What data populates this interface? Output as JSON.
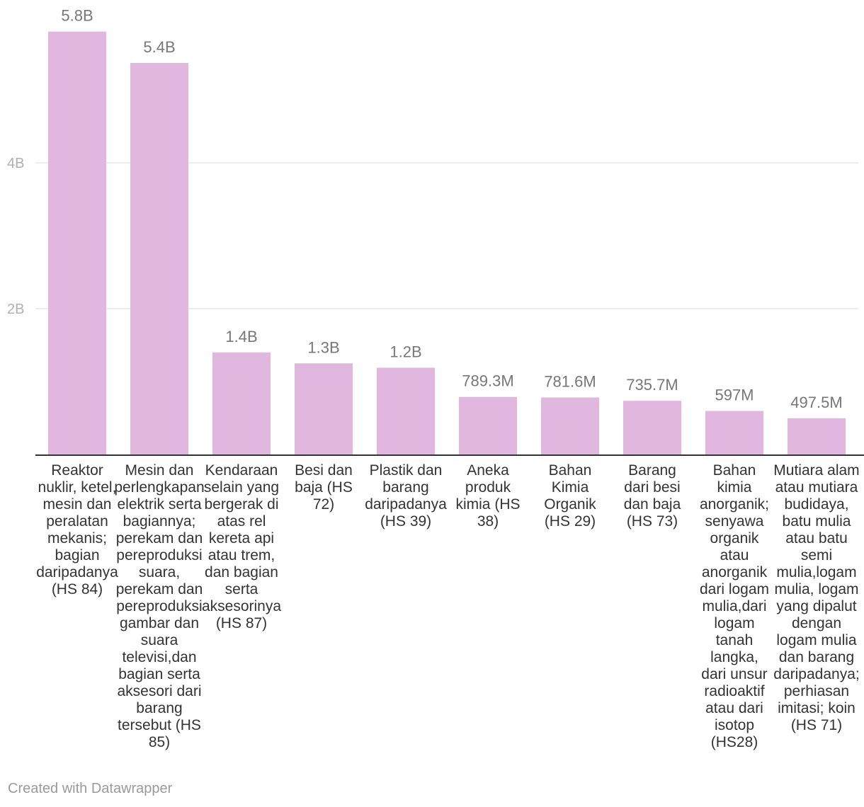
{
  "chart_data": {
    "type": "bar",
    "categories": [
      "Reaktor nuklir, ketel, mesin dan peralatan mekanis; bagian daripadanya (HS 84)",
      "Mesin dan perlengkapan elektrik serta bagiannya; perekam dan pereproduksi suara, perekam dan pereproduksi gambar dan suara televisi,dan bagian serta aksesori dari barang tersebut (HS 85)",
      "Kendaraan selain yang bergerak di atas rel kereta api atau trem, dan bagian serta aksesorinya (HS 87)",
      "Besi dan baja (HS 72)",
      "Plastik dan barang daripadanya (HS 39)",
      "Aneka produk kimia (HS 38)",
      "Bahan Kimia Organik (HS 29)",
      "Barang dari besi dan baja (HS 73)",
      "Bahan kimia anorganik; senyawa organik atau anorganik dari logam mulia,dari logam tanah langka, dari unsur radioaktif atau dari isotop (HS28)",
      "Mutiara alam atau mutiara budidaya, batu mulia atau batu semi mulia,logam mulia, logam yang dipalut dengan logam mulia dan barang daripadanya; perhiasan imitasi; koin (HS 71)"
    ],
    "category_lines": [
      [
        "Reaktor",
        "nuklir, ketel,",
        "mesin dan",
        "peralatan",
        "mekanis;",
        "bagian",
        "daripadanya",
        "(HS 84)"
      ],
      [
        "Mesin dan",
        "perlengkapan",
        "elektrik serta",
        "bagiannya;",
        "perekam dan",
        "pereproduksi",
        "suara,",
        "perekam dan",
        "pereproduksi",
        "gambar dan",
        "suara",
        "televisi,dan",
        "bagian serta",
        "aksesori dari",
        "barang",
        "tersebut (HS",
        "85)"
      ],
      [
        "Kendaraan",
        "selain yang",
        "bergerak di",
        "atas rel",
        "kereta api",
        "atau trem,",
        "dan bagian",
        "serta",
        "aksesorinya",
        "(HS 87)"
      ],
      [
        "Besi dan",
        "baja (HS",
        "72)"
      ],
      [
        "Plastik dan",
        "barang",
        "daripadanya",
        "(HS 39)"
      ],
      [
        "Aneka",
        "produk",
        "kimia (HS",
        "38)"
      ],
      [
        "Bahan",
        "Kimia",
        "Organik",
        "(HS 29)"
      ],
      [
        "Barang",
        "dari besi",
        "dan baja",
        "(HS 73)"
      ],
      [
        "Bahan",
        "kimia",
        "anorganik;",
        "senyawa",
        "organik",
        "atau",
        "anorganik",
        "dari logam",
        "mulia,dari",
        "logam",
        "tanah",
        "langka,",
        "dari unsur",
        "radioaktif",
        "atau dari",
        "isotop",
        "(HS28)"
      ],
      [
        "Mutiara alam",
        "atau mutiara",
        "budidaya,",
        "batu mulia",
        "atau batu",
        "semi",
        "mulia,logam",
        "mulia, logam",
        "yang dipalut",
        "dengan",
        "logam mulia",
        "dan barang",
        "daripadanya;",
        "perhiasan",
        "imitasi; koin",
        "(HS 71)"
      ]
    ],
    "values": [
      5800000000,
      5370000000,
      1400000000,
      1250000000,
      1190000000,
      789300000,
      781600000,
      735700000,
      597000000,
      497500000
    ],
    "value_labels": [
      "5.8B",
      "5.4B",
      "1.4B",
      "1.3B",
      "1.2B",
      "789.3M",
      "781.6M",
      "735.7M",
      "597M",
      "497.5M"
    ],
    "yticks": [
      {
        "value": 2000000000,
        "label": "2B"
      },
      {
        "value": 4000000000,
        "label": "4B"
      }
    ],
    "ylim": [
      0,
      6000000000
    ],
    "grid": true,
    "bar_color": "#e1b7df",
    "grid_color": "#e6e6e6",
    "baseline_color": "#333333",
    "title": "",
    "xlabel": "",
    "ylabel": ""
  },
  "credit": "Created with Datawrapper"
}
